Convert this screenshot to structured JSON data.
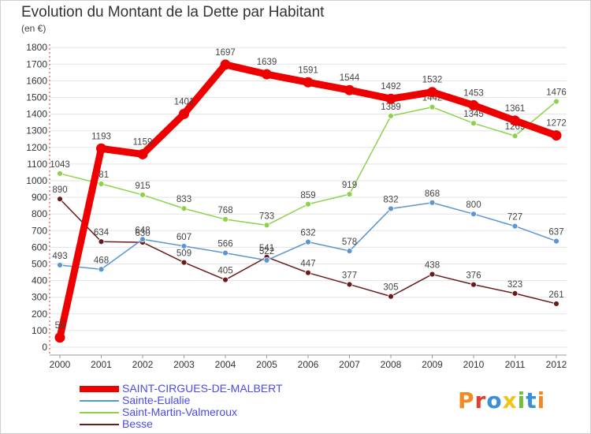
{
  "header": {
    "title": "Evolution du Montant de la Dette par Habitant",
    "subtitle": "(en €)"
  },
  "logo": {
    "text": "Proxiti",
    "letter_colors": [
      "#f08a24",
      "#e43d2b",
      "#3a8fd6",
      "#f0c419",
      "#6fbf3a",
      "#3a8fd6",
      "#f08a24"
    ]
  },
  "chart_data": {
    "type": "line",
    "title": "Evolution du Montant de la Dette par Habitant",
    "subtitle": "(en €)",
    "xlabel": "",
    "ylabel": "",
    "x": [
      "2000",
      "2001",
      "2002",
      "2003",
      "2004",
      "2005",
      "2006",
      "2007",
      "2008",
      "2009",
      "2010",
      "2011",
      "2012"
    ],
    "ylim": [
      0,
      1800
    ],
    "yticks": [
      0,
      100,
      200,
      300,
      400,
      500,
      600,
      700,
      800,
      900,
      1000,
      1100,
      1200,
      1300,
      1400,
      1500,
      1600,
      1700,
      1800
    ],
    "grid": "horizontal",
    "legend_position": "bottom-left",
    "series": [
      {
        "name": "SAINT-CIRGUES-DE-MALBERT",
        "color": "#ee0000",
        "values": [
          58,
          1193,
          1159,
          1401,
          1697,
          1639,
          1591,
          1544,
          1492,
          1532,
          1453,
          1361,
          1272
        ],
        "labels": [
          "58",
          "1193",
          "1159",
          "1401",
          "1697",
          "1639",
          "1591",
          "1544",
          "1492",
          "1532",
          "1453",
          "1361",
          "1272"
        ]
      },
      {
        "name": "Sainte-Eulalie",
        "color": "#5a96d2",
        "values": [
          493,
          468,
          648,
          607,
          566,
          522,
          632,
          578,
          832,
          868,
          800,
          727,
          637
        ],
        "labels": [
          "493",
          "468",
          "648",
          "607",
          "566",
          "522",
          "632",
          "578",
          "832",
          "868",
          "800",
          "727",
          "637"
        ]
      },
      {
        "name": "Saint-Martin-Valmeroux",
        "color": "#8ed14a",
        "values": [
          1043,
          981,
          915,
          833,
          768,
          733,
          859,
          919,
          1389,
          1442,
          1345,
          1269,
          1476
        ],
        "labels": [
          "1043",
          "981",
          "915",
          "833",
          "768",
          "733",
          "859",
          "919",
          "1389",
          "1442",
          "1345",
          "1269",
          "1476"
        ]
      },
      {
        "name": "Besse",
        "color": "#6b1a1a",
        "values": [
          890,
          634,
          630,
          509,
          405,
          541,
          447,
          377,
          305,
          438,
          376,
          323,
          261
        ],
        "labels": [
          "890",
          "634",
          "630",
          "509",
          "405",
          "541",
          "447",
          "377",
          "305",
          "438",
          "376",
          "323",
          "261"
        ]
      }
    ]
  }
}
